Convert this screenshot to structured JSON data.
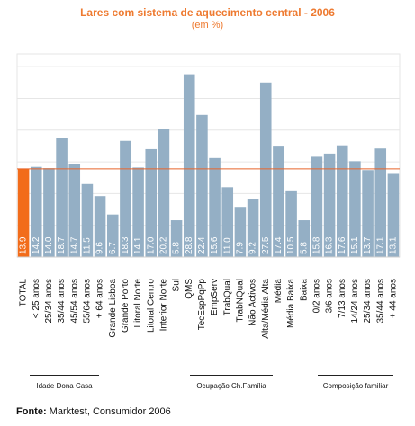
{
  "title": "Lares com sistema de aquecimento central - 2006",
  "subtitle": "(em %)",
  "source": {
    "label": "Fonte:",
    "text": "Marktest, Consumidor 2006"
  },
  "groups": [
    {
      "label": "Idade Dona Casa"
    },
    {
      "label": "Ocupação Ch.Família"
    },
    {
      "label": "Composição familiar"
    }
  ],
  "colors": {
    "bar": "#94afc5",
    "highlight": "#f26c1a",
    "refline": "#e8652a",
    "plot_bg": "#ffffff",
    "grid": "#e6e6e6",
    "text": "#ffffff"
  },
  "chart_data": {
    "type": "bar",
    "title": "Lares com sistema de aquecimento central - 2006",
    "subtitle": "(em %)",
    "categories": [
      "TOTAL",
      "< 25 anos",
      "25/34 anos",
      "35/44 anos",
      "45/54 anos",
      "55/64 anos",
      "+ 64 anos",
      "Grande Lisboa",
      "Grande Porto",
      "Litoral Norte",
      "Litoral Centro",
      "Interior Norte",
      "Sul",
      "QMS",
      "TecEspPqPp",
      "EmpServ",
      "TrabQual",
      "TrabNQual",
      "Não Activos",
      "Alta/Média Alta",
      "Média",
      "Média Baixa",
      "Baixa",
      "0/2 anos",
      "3/6 anos",
      "7/13 anos",
      "14/24 anos",
      "25/34 anos",
      "35/44 anos",
      "+ 44 anos"
    ],
    "values": [
      13.9,
      14.2,
      14.0,
      18.7,
      14.7,
      11.5,
      9.6,
      6.7,
      18.3,
      14.1,
      17.0,
      20.2,
      5.8,
      28.8,
      22.4,
      15.6,
      11.0,
      7.9,
      9.2,
      27.5,
      17.4,
      10.5,
      5.8,
      15.8,
      16.3,
      17.6,
      15.1,
      13.7,
      17.1,
      13.1
    ],
    "value_labels": [
      "13.9",
      "14.2",
      "14.0",
      "18.7",
      "14.7",
      "11.5",
      "9.6",
      "6.7",
      "18.3",
      "14.1",
      "17.0",
      "20.2",
      "5.8",
      "28.8",
      "22.4",
      "15.6",
      "11.0",
      "7.9",
      "9.2",
      "27.5",
      "17.4",
      "10.5",
      "5.8",
      "15.8",
      "16.3",
      "17.6",
      "15.1",
      "13.7",
      "17.1",
      "13.1"
    ],
    "highlight_index": 0,
    "reference_line": 13.9,
    "ylim": [
      0,
      32
    ],
    "grid": true
  }
}
